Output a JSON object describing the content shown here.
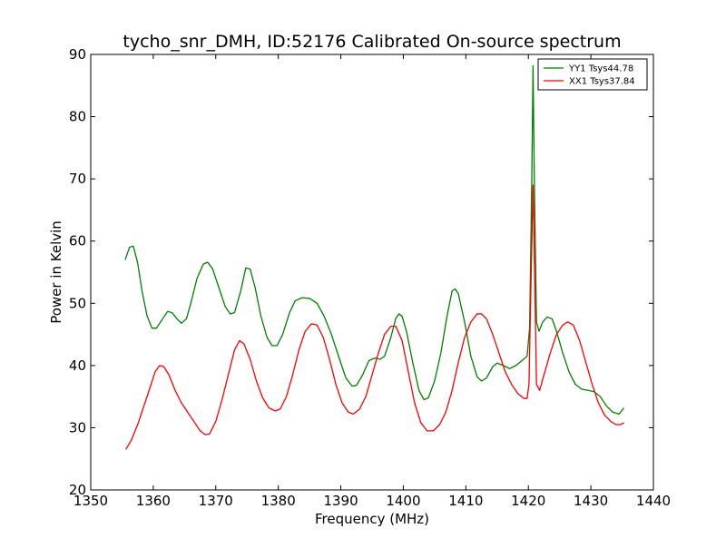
{
  "chart_data": {
    "type": "line",
    "title": "tycho_snr_DMH, ID:52176 Calibrated On-source spectrum",
    "xlabel": "Frequency (MHz)",
    "ylabel": "Power in Kelvin",
    "xlim": [
      1350,
      1440
    ],
    "ylim": [
      20,
      90
    ],
    "xticks": [
      1350,
      1360,
      1370,
      1380,
      1390,
      1400,
      1410,
      1420,
      1430,
      1440
    ],
    "yticks": [
      20,
      30,
      40,
      50,
      60,
      70,
      80,
      90
    ],
    "grid": false,
    "legend": {
      "position": "top-right"
    },
    "series": [
      {
        "name": "YY1 Tsys44.78",
        "color": "#008000",
        "points": [
          [
            1355.5,
            57.0
          ],
          [
            1356.2,
            59.0
          ],
          [
            1356.8,
            59.2
          ],
          [
            1357.5,
            56.5
          ],
          [
            1358.2,
            52.0
          ],
          [
            1359.0,
            48.0
          ],
          [
            1359.8,
            46.0
          ],
          [
            1360.5,
            46.0
          ],
          [
            1361.5,
            47.5
          ],
          [
            1362.3,
            48.7
          ],
          [
            1363.0,
            48.5
          ],
          [
            1363.8,
            47.5
          ],
          [
            1364.5,
            46.8
          ],
          [
            1365.3,
            47.5
          ],
          [
            1366.0,
            50.0
          ],
          [
            1367.0,
            54.0
          ],
          [
            1368.0,
            56.3
          ],
          [
            1368.7,
            56.6
          ],
          [
            1369.5,
            55.5
          ],
          [
            1370.5,
            52.5
          ],
          [
            1371.5,
            49.5
          ],
          [
            1372.3,
            48.3
          ],
          [
            1373.0,
            48.5
          ],
          [
            1374.0,
            52.0
          ],
          [
            1374.8,
            55.7
          ],
          [
            1375.5,
            55.5
          ],
          [
            1376.3,
            52.5
          ],
          [
            1377.2,
            48.0
          ],
          [
            1378.2,
            44.5
          ],
          [
            1379.0,
            43.2
          ],
          [
            1379.8,
            43.2
          ],
          [
            1380.7,
            45.0
          ],
          [
            1381.8,
            48.5
          ],
          [
            1382.7,
            50.4
          ],
          [
            1383.8,
            50.9
          ],
          [
            1385.0,
            50.8
          ],
          [
            1386.2,
            50.0
          ],
          [
            1387.3,
            48.0
          ],
          [
            1388.5,
            45.0
          ],
          [
            1389.8,
            41.0
          ],
          [
            1390.8,
            38.0
          ],
          [
            1391.8,
            36.7
          ],
          [
            1392.5,
            36.8
          ],
          [
            1393.5,
            38.5
          ],
          [
            1394.5,
            40.8
          ],
          [
            1395.5,
            41.2
          ],
          [
            1396.3,
            41.0
          ],
          [
            1397.0,
            41.5
          ],
          [
            1398.0,
            44.5
          ],
          [
            1398.8,
            47.6
          ],
          [
            1399.3,
            48.3
          ],
          [
            1399.8,
            47.9
          ],
          [
            1400.5,
            45.5
          ],
          [
            1401.5,
            40.5
          ],
          [
            1402.5,
            36.0
          ],
          [
            1403.3,
            34.5
          ],
          [
            1404.0,
            34.8
          ],
          [
            1405.0,
            37.5
          ],
          [
            1406.0,
            42.0
          ],
          [
            1407.0,
            48.0
          ],
          [
            1407.8,
            52.0
          ],
          [
            1408.3,
            52.3
          ],
          [
            1408.8,
            51.5
          ],
          [
            1409.8,
            47.0
          ],
          [
            1410.8,
            41.5
          ],
          [
            1411.8,
            38.2
          ],
          [
            1412.5,
            37.5
          ],
          [
            1413.3,
            38.0
          ],
          [
            1414.3,
            39.8
          ],
          [
            1415.0,
            40.4
          ],
          [
            1416.0,
            40.0
          ],
          [
            1417.0,
            39.5
          ],
          [
            1418.0,
            40.0
          ],
          [
            1419.0,
            40.8
          ],
          [
            1419.8,
            41.5
          ],
          [
            1420.2,
            46.0
          ],
          [
            1420.55,
            70.0
          ],
          [
            1420.75,
            88.2
          ],
          [
            1420.95,
            70.0
          ],
          [
            1421.3,
            47.0
          ],
          [
            1421.7,
            45.5
          ],
          [
            1422.3,
            47.0
          ],
          [
            1423.0,
            47.8
          ],
          [
            1423.8,
            47.5
          ],
          [
            1424.5,
            45.5
          ],
          [
            1425.5,
            42.0
          ],
          [
            1426.5,
            39.0
          ],
          [
            1427.5,
            37.0
          ],
          [
            1428.5,
            36.2
          ],
          [
            1429.5,
            36.0
          ],
          [
            1430.5,
            35.8
          ],
          [
            1431.5,
            35.0
          ],
          [
            1432.5,
            33.5
          ],
          [
            1433.5,
            32.5
          ],
          [
            1434.5,
            32.2
          ],
          [
            1435.3,
            33.2
          ]
        ]
      },
      {
        "name": "XX1 Tsys37.84",
        "color": "#ff0000",
        "points": [
          [
            1355.6,
            26.5
          ],
          [
            1356.5,
            28.0
          ],
          [
            1357.5,
            30.5
          ],
          [
            1358.5,
            33.5
          ],
          [
            1359.5,
            36.5
          ],
          [
            1360.3,
            39.0
          ],
          [
            1361.0,
            40.0
          ],
          [
            1361.7,
            39.8
          ],
          [
            1362.5,
            38.5
          ],
          [
            1363.5,
            36.0
          ],
          [
            1364.5,
            34.0
          ],
          [
            1365.5,
            32.5
          ],
          [
            1366.5,
            31.0
          ],
          [
            1367.5,
            29.5
          ],
          [
            1368.3,
            28.9
          ],
          [
            1369.0,
            29.0
          ],
          [
            1370.0,
            31.0
          ],
          [
            1371.0,
            34.5
          ],
          [
            1372.0,
            38.5
          ],
          [
            1373.0,
            42.5
          ],
          [
            1373.8,
            44.0
          ],
          [
            1374.5,
            43.5
          ],
          [
            1375.5,
            41.0
          ],
          [
            1376.5,
            37.5
          ],
          [
            1377.5,
            34.8
          ],
          [
            1378.5,
            33.2
          ],
          [
            1379.5,
            32.7
          ],
          [
            1380.3,
            33.0
          ],
          [
            1381.3,
            35.0
          ],
          [
            1382.3,
            38.5
          ],
          [
            1383.3,
            42.5
          ],
          [
            1384.3,
            45.5
          ],
          [
            1385.3,
            46.7
          ],
          [
            1386.2,
            46.5
          ],
          [
            1387.2,
            44.5
          ],
          [
            1388.2,
            41.0
          ],
          [
            1389.2,
            37.0
          ],
          [
            1390.2,
            34.0
          ],
          [
            1391.2,
            32.5
          ],
          [
            1392.0,
            32.2
          ],
          [
            1393.0,
            33.0
          ],
          [
            1394.0,
            35.0
          ],
          [
            1395.0,
            38.5
          ],
          [
            1396.0,
            42.0
          ],
          [
            1397.0,
            45.0
          ],
          [
            1398.0,
            46.3
          ],
          [
            1398.8,
            46.3
          ],
          [
            1399.8,
            44.0
          ],
          [
            1400.8,
            39.0
          ],
          [
            1401.8,
            34.0
          ],
          [
            1402.8,
            30.8
          ],
          [
            1403.8,
            29.5
          ],
          [
            1404.8,
            29.5
          ],
          [
            1405.8,
            30.5
          ],
          [
            1406.8,
            32.5
          ],
          [
            1407.8,
            36.0
          ],
          [
            1408.8,
            40.5
          ],
          [
            1409.8,
            44.5
          ],
          [
            1410.8,
            47.0
          ],
          [
            1411.8,
            48.3
          ],
          [
            1412.5,
            48.3
          ],
          [
            1413.3,
            47.5
          ],
          [
            1414.3,
            45.0
          ],
          [
            1415.3,
            42.0
          ],
          [
            1416.3,
            39.0
          ],
          [
            1417.3,
            37.0
          ],
          [
            1418.3,
            35.5
          ],
          [
            1419.3,
            34.7
          ],
          [
            1419.8,
            34.7
          ],
          [
            1420.1,
            37.0
          ],
          [
            1420.45,
            55.0
          ],
          [
            1420.75,
            69.0
          ],
          [
            1421.0,
            55.0
          ],
          [
            1421.3,
            37.0
          ],
          [
            1421.8,
            36.0
          ],
          [
            1422.5,
            38.5
          ],
          [
            1423.5,
            42.0
          ],
          [
            1424.5,
            45.0
          ],
          [
            1425.5,
            46.5
          ],
          [
            1426.3,
            47.0
          ],
          [
            1427.2,
            46.5
          ],
          [
            1428.2,
            44.0
          ],
          [
            1429.2,
            40.5
          ],
          [
            1430.2,
            37.0
          ],
          [
            1431.2,
            34.0
          ],
          [
            1432.2,
            32.0
          ],
          [
            1433.2,
            31.0
          ],
          [
            1434.0,
            30.5
          ],
          [
            1434.7,
            30.5
          ],
          [
            1435.3,
            30.8
          ]
        ]
      }
    ]
  }
}
